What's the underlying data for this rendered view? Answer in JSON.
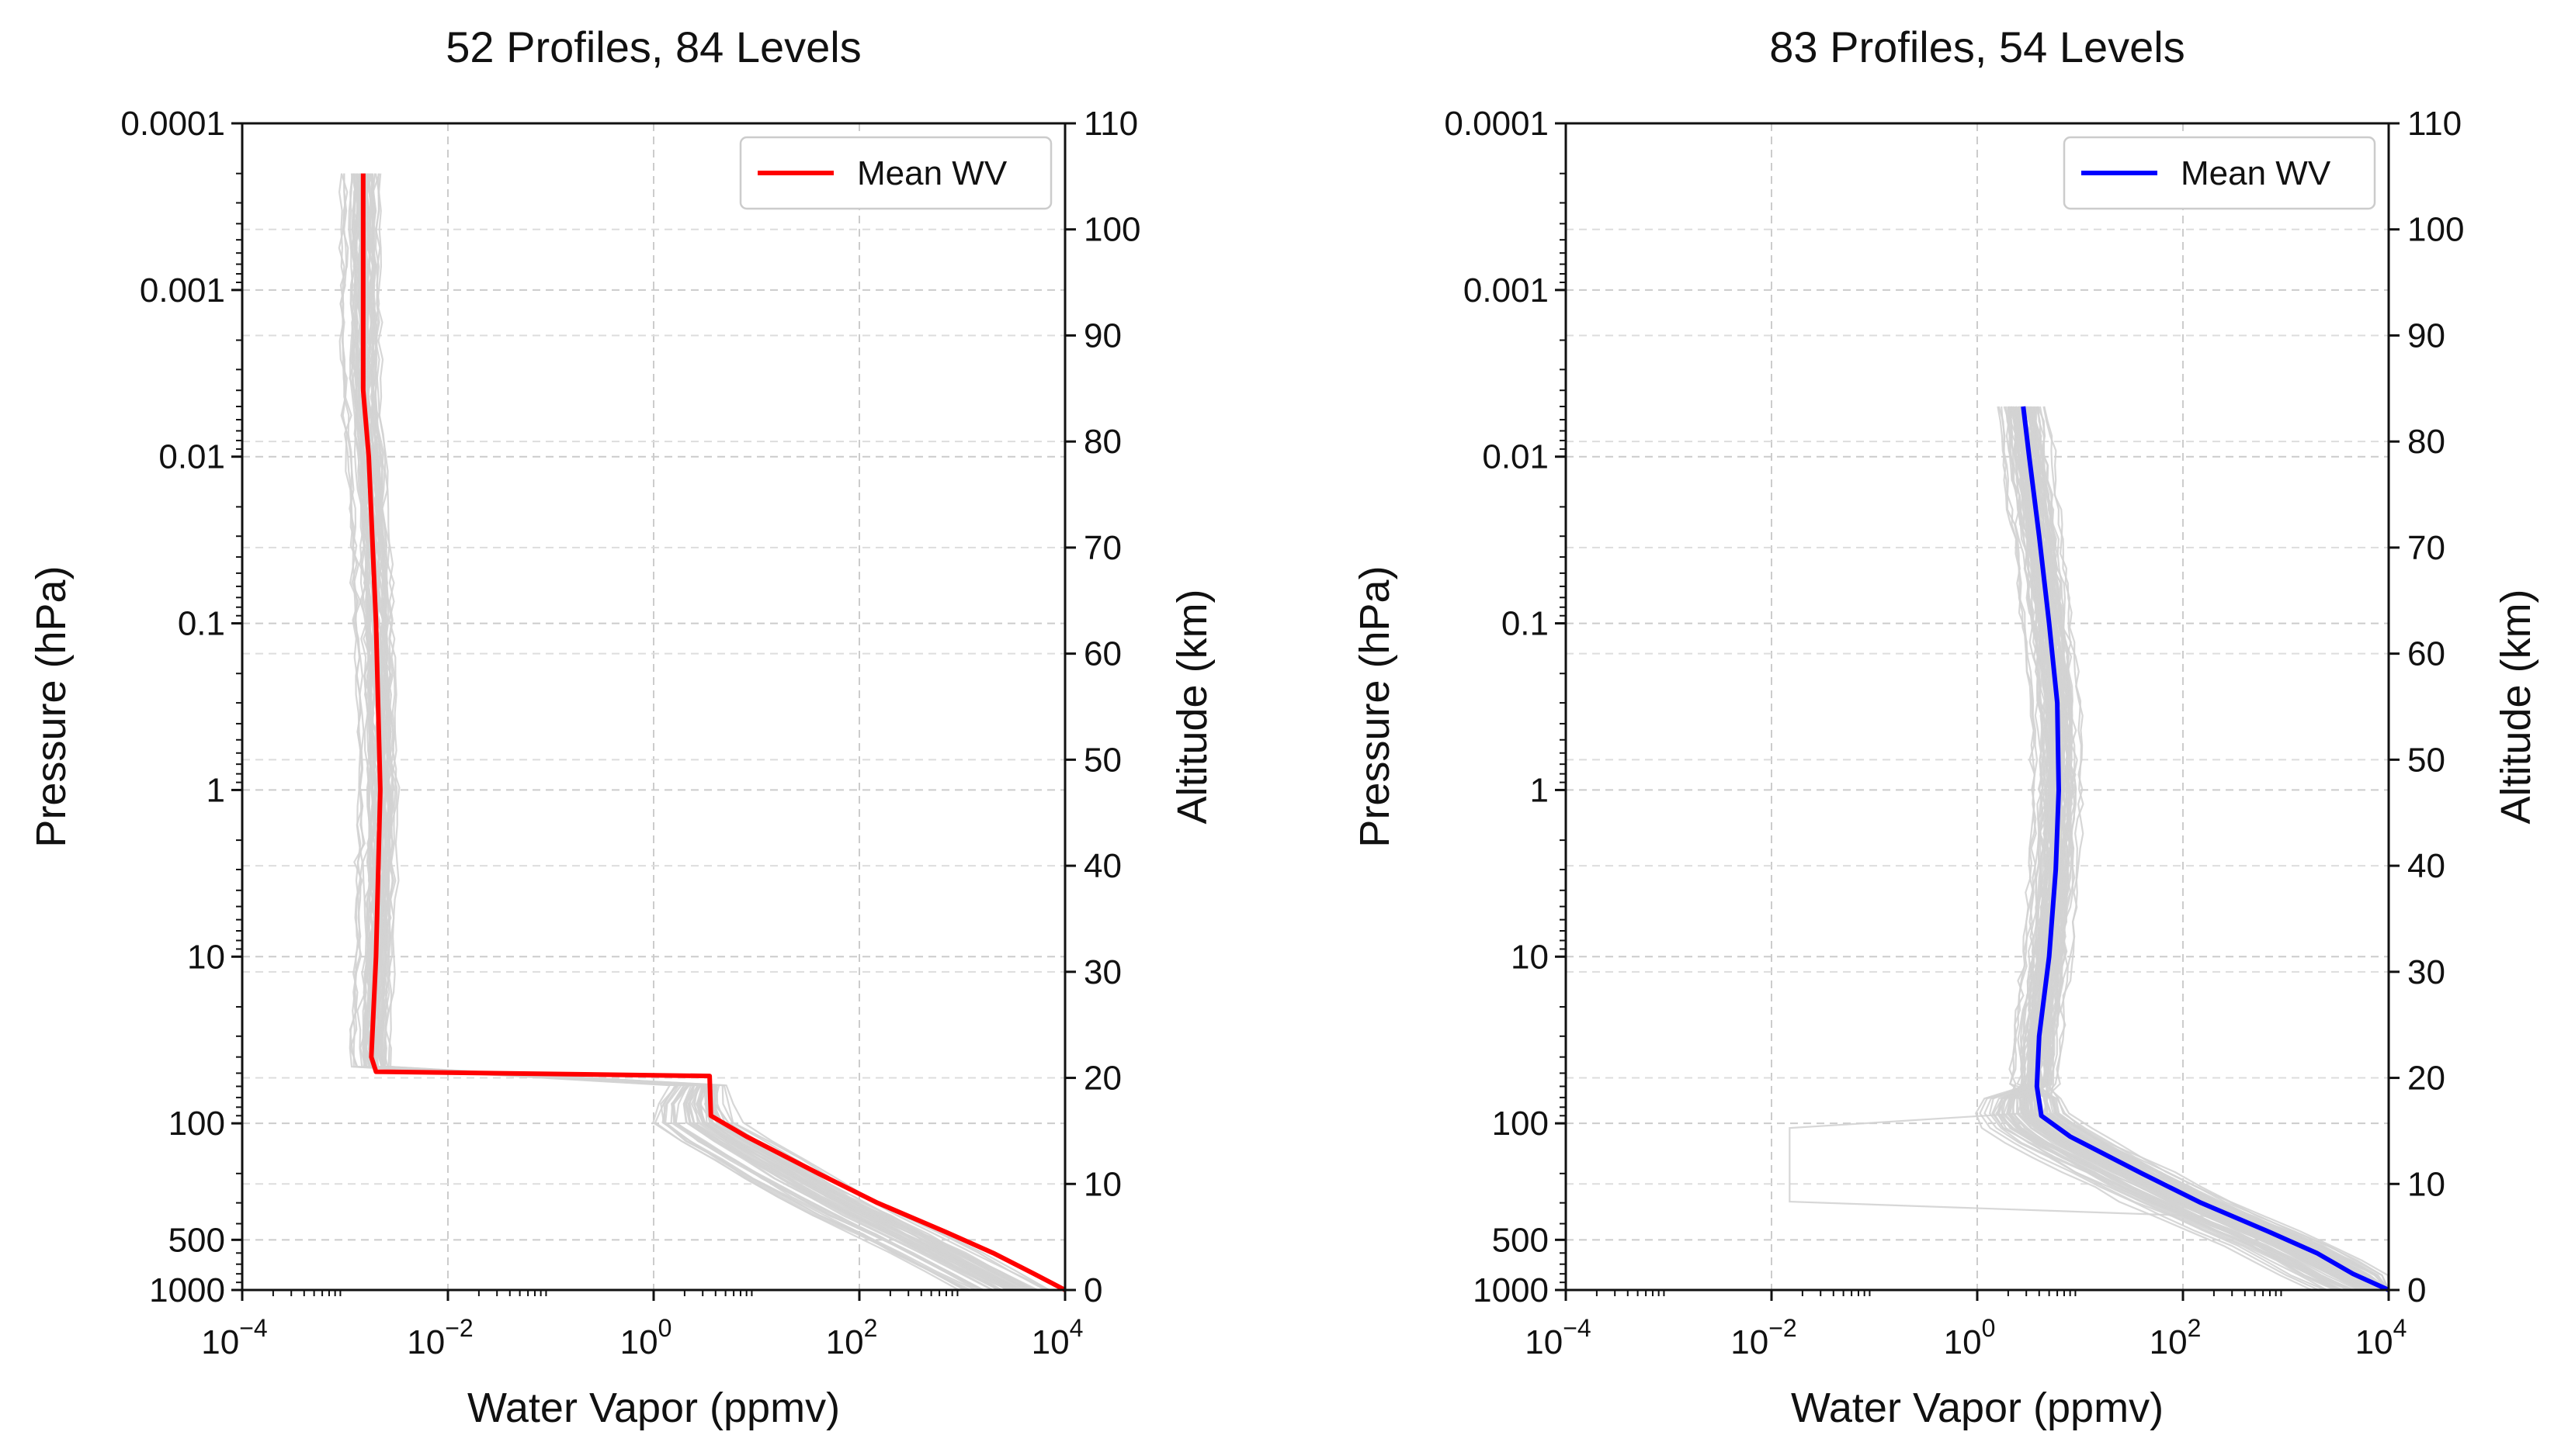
{
  "chart_data": [
    {
      "type": "line",
      "title": "52 Profiles, 84 Levels",
      "xlabel": "Water Vapor (ppmv)",
      "ylabel": "Pressure (hPa)",
      "y2label": "Altitude (km)",
      "xscale": "log",
      "yscale": "log",
      "xlim": [
        0.0001,
        10000
      ],
      "ylim": [
        1000,
        0.0001
      ],
      "x_ticks": [
        {
          "base": "10",
          "exp": "−4"
        },
        {
          "base": "10",
          "exp": "−2"
        },
        {
          "base": "10",
          "exp": "0"
        },
        {
          "base": "10",
          "exp": "2"
        },
        {
          "base": "10",
          "exp": "4"
        }
      ],
      "y_ticks": [
        "0.0001",
        "0.001",
        "0.01",
        "0.1",
        "1",
        "10",
        "100",
        "500",
        "1000"
      ],
      "y2_ticks": [
        "0",
        "10",
        "20",
        "30",
        "40",
        "50",
        "60",
        "70",
        "80",
        "90",
        "100",
        "110"
      ],
      "legend": {
        "label": "Mean WV",
        "position": "top-right"
      },
      "mean_color": "#ff0000",
      "envelope_color": "#d3d3d3",
      "n_profiles": 52,
      "n_levels": 84,
      "envelope_description": "light gray individual profiles",
      "mean_profile": [
        {
          "p": 0.0002,
          "wv": 0.0015
        },
        {
          "p": 0.001,
          "wv": 0.0015
        },
        {
          "p": 0.004,
          "wv": 0.0015
        },
        {
          "p": 0.01,
          "wv": 0.0017
        },
        {
          "p": 0.1,
          "wv": 0.002
        },
        {
          "p": 1,
          "wv": 0.0022
        },
        {
          "p": 10,
          "wv": 0.002
        },
        {
          "p": 40,
          "wv": 0.0018
        },
        {
          "p": 49,
          "wv": 0.002
        },
        {
          "p": 52,
          "wv": 3.5
        },
        {
          "p": 90,
          "wv": 3.6
        },
        {
          "p": 120,
          "wv": 8
        },
        {
          "p": 200,
          "wv": 40
        },
        {
          "p": 300,
          "wv": 150
        },
        {
          "p": 450,
          "wv": 700
        },
        {
          "p": 600,
          "wv": 2000
        },
        {
          "p": 800,
          "wv": 5000
        },
        {
          "p": 1000,
          "wv": 10000
        }
      ]
    },
    {
      "type": "line",
      "title": "83 Profiles, 54 Levels",
      "xlabel": "Water Vapor (ppmv)",
      "ylabel": "Pressure (hPa)",
      "y2label": "Altitude (km)",
      "xscale": "log",
      "yscale": "log",
      "xlim": [
        0.0001,
        10000
      ],
      "ylim": [
        1000,
        0.0001
      ],
      "x_ticks": [
        {
          "base": "10",
          "exp": "−4"
        },
        {
          "base": "10",
          "exp": "−2"
        },
        {
          "base": "10",
          "exp": "0"
        },
        {
          "base": "10",
          "exp": "2"
        },
        {
          "base": "10",
          "exp": "4"
        }
      ],
      "y_ticks": [
        "0.0001",
        "0.001",
        "0.01",
        "0.1",
        "1",
        "10",
        "100",
        "500",
        "1000"
      ],
      "y2_ticks": [
        "0",
        "10",
        "20",
        "30",
        "40",
        "50",
        "60",
        "70",
        "80",
        "90",
        "100",
        "110"
      ],
      "legend": {
        "label": "Mean WV",
        "position": "top-right"
      },
      "mean_color": "#0000ff",
      "envelope_color": "#d3d3d3",
      "n_profiles": 83,
      "n_levels": 54,
      "envelope_description": "light gray individual profiles",
      "mean_profile": [
        {
          "p": 0.005,
          "wv": 2.8
        },
        {
          "p": 0.01,
          "wv": 3.2
        },
        {
          "p": 0.03,
          "wv": 4.0
        },
        {
          "p": 0.1,
          "wv": 5.0
        },
        {
          "p": 0.3,
          "wv": 6.0
        },
        {
          "p": 1,
          "wv": 6.2
        },
        {
          "p": 3,
          "wv": 5.8
        },
        {
          "p": 10,
          "wv": 5.0
        },
        {
          "p": 30,
          "wv": 4.0
        },
        {
          "p": 60,
          "wv": 3.8
        },
        {
          "p": 90,
          "wv": 4.2
        },
        {
          "p": 120,
          "wv": 8
        },
        {
          "p": 200,
          "wv": 40
        },
        {
          "p": 300,
          "wv": 150
        },
        {
          "p": 450,
          "wv": 700
        },
        {
          "p": 600,
          "wv": 2000
        },
        {
          "p": 800,
          "wv": 4500
        },
        {
          "p": 1000,
          "wv": 10000
        }
      ]
    }
  ]
}
